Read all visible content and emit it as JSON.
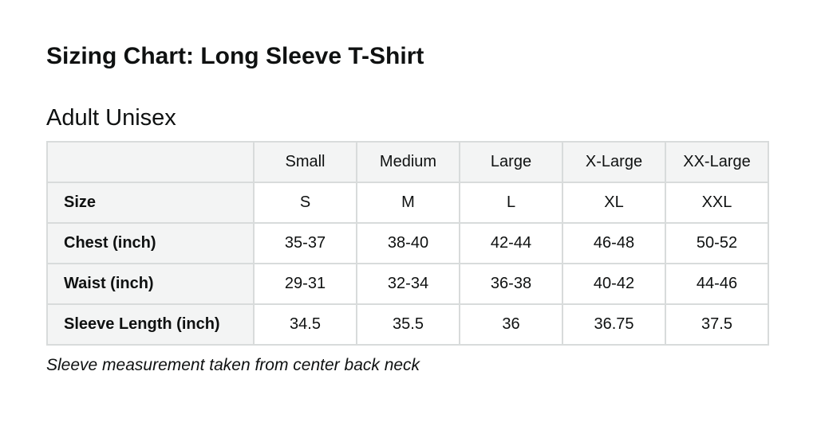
{
  "page": {
    "title": "Sizing Chart: Long Sleeve T-Shirt",
    "section_title": "Adult Unisex",
    "footnote": "Sleeve measurement taken from center back neck"
  },
  "table": {
    "column_headers": [
      "",
      "Small",
      "Medium",
      "Large",
      "X-Large",
      "XX-Large"
    ],
    "rows": [
      {
        "label": "Size",
        "values": [
          "S",
          "M",
          "L",
          "XL",
          "XXL"
        ]
      },
      {
        "label": "Chest (inch)",
        "values": [
          "35-37",
          "38-40",
          "42-44",
          "46-48",
          "50-52"
        ]
      },
      {
        "label": "Waist (inch)",
        "values": [
          "29-31",
          "32-34",
          "36-38",
          "40-42",
          "44-46"
        ]
      },
      {
        "label": "Sleeve Length (inch)",
        "values": [
          "34.5",
          "35.5",
          "36",
          "36.75",
          "37.5"
        ]
      }
    ]
  },
  "colors": {
    "header_background": "#f3f4f4",
    "border": "#d8dbdb",
    "text": "#0f1111",
    "page_background": "#ffffff"
  }
}
